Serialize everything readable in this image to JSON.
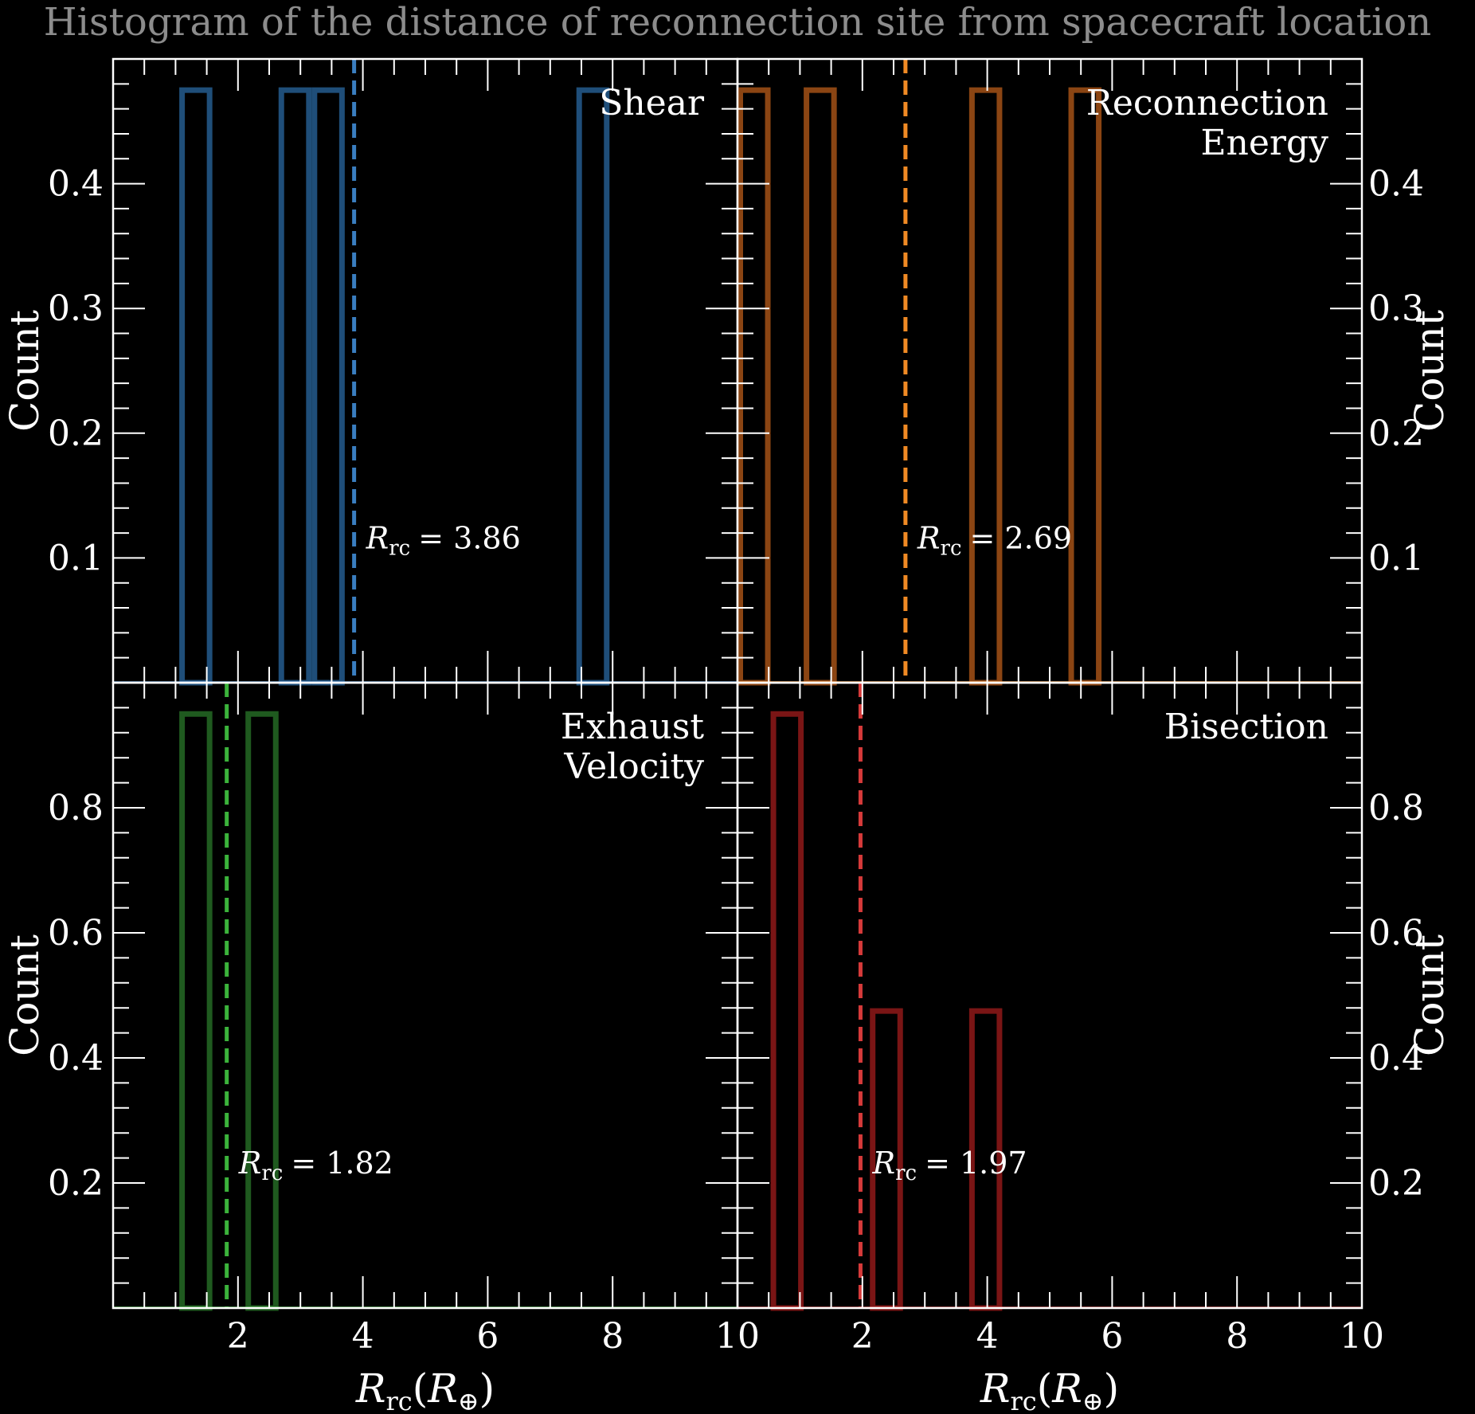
{
  "title": "Histogram of the distance of reconnection site from spacecraft location",
  "chart_data": [
    {
      "type": "bar",
      "label": [
        "Shear"
      ],
      "bin_edges": [
        0.0,
        0.53,
        1.06,
        1.59,
        2.12,
        2.65,
        3.18,
        3.71,
        4.24,
        4.77,
        5.3,
        5.83,
        6.36,
        6.89,
        7.42,
        7.95,
        8.48,
        9.01,
        9.54,
        10.07
      ],
      "values": [
        0,
        0,
        0.475,
        0,
        0,
        0.475,
        0.475,
        0,
        0,
        0,
        0,
        0,
        0,
        0,
        0.475,
        0,
        0,
        0,
        0
      ],
      "median_label": "= 3.86",
      "median_value": 3.86,
      "color": "#1f4e79",
      "line_color": "#3a7ec0",
      "xlim": [
        0,
        10
      ],
      "ylim": [
        0,
        0.5
      ],
      "yticks": [
        0.1,
        0.2,
        0.3,
        0.4
      ],
      "ytick_labels": [
        "0.1",
        "0.2",
        "0.3",
        "0.4"
      ],
      "ylabel": "Count",
      "ylabel_side": "left"
    },
    {
      "type": "bar",
      "label": [
        "Reconnection",
        "Energy"
      ],
      "bin_edges": [
        0.0,
        0.53,
        1.06,
        1.59,
        2.12,
        2.65,
        3.18,
        3.71,
        4.24,
        4.77,
        5.3,
        5.83,
        6.36,
        6.89,
        7.42,
        7.95,
        8.48,
        9.01,
        9.54,
        10.07
      ],
      "values": [
        0.475,
        0,
        0.475,
        0,
        0,
        0,
        0,
        0.475,
        0,
        0,
        0.475,
        0,
        0,
        0,
        0,
        0,
        0,
        0,
        0
      ],
      "median_label": "= 2.69",
      "median_value": 2.69,
      "color": "#8b4513",
      "line_color": "#f08a24",
      "xlim": [
        0,
        10
      ],
      "ylim": [
        0,
        0.5
      ],
      "yticks": [
        0.1,
        0.2,
        0.3,
        0.4
      ],
      "ytick_labels": [
        "0.1",
        "0.2",
        "0.3",
        "0.4"
      ],
      "ylabel": "Count",
      "ylabel_side": "right"
    },
    {
      "type": "bar",
      "label": [
        "Exhaust",
        "Velocity"
      ],
      "bin_edges": [
        0.0,
        0.53,
        1.06,
        1.59,
        2.12,
        2.65,
        3.18,
        3.71,
        4.24,
        4.77,
        5.3,
        5.83,
        6.36,
        6.89,
        7.42,
        7.95,
        8.48,
        9.01,
        9.54,
        10.07
      ],
      "values": [
        0,
        0,
        0.95,
        0,
        0.95,
        0,
        0,
        0,
        0,
        0,
        0,
        0,
        0,
        0,
        0,
        0,
        0,
        0,
        0
      ],
      "median_label": "= 1.82",
      "median_value": 1.82,
      "color": "#1f5a1f",
      "line_color": "#3bb33b",
      "xlim": [
        0,
        10
      ],
      "ylim": [
        0,
        1.0
      ],
      "yticks": [
        0.2,
        0.4,
        0.6,
        0.8
      ],
      "ytick_labels": [
        "0.2",
        "0.4",
        "0.6",
        "0.8"
      ],
      "xticks": [
        2,
        4,
        6,
        8,
        10
      ],
      "xtick_labels": [
        "2",
        "4",
        "6",
        "8",
        "10"
      ],
      "xlabel": "(",
      "ylabel": "Count",
      "ylabel_side": "left"
    },
    {
      "type": "bar",
      "label": [
        "Bisection"
      ],
      "bin_edges": [
        0.0,
        0.53,
        1.06,
        1.59,
        2.12,
        2.65,
        3.18,
        3.71,
        4.24,
        4.77,
        5.3,
        5.83,
        6.36,
        6.89,
        7.42,
        7.95,
        8.48,
        9.01,
        9.54,
        10.07
      ],
      "values": [
        0,
        0.95,
        0,
        0,
        0.475,
        0,
        0,
        0.475,
        0,
        0,
        0,
        0,
        0,
        0,
        0,
        0,
        0,
        0,
        0
      ],
      "median_label": "= 1.97",
      "median_value": 1.97,
      "color": "#7a1515",
      "line_color": "#d63a3a",
      "xlim": [
        0,
        10
      ],
      "ylim": [
        0,
        1.0
      ],
      "yticks": [
        0.2,
        0.4,
        0.6,
        0.8
      ],
      "ytick_labels": [
        "0.2",
        "0.4",
        "0.6",
        "0.8"
      ],
      "xticks": [
        2,
        4,
        6,
        8,
        10
      ],
      "xtick_labels": [
        "2",
        "4",
        "6",
        "8",
        "10"
      ],
      "xlabel": "(",
      "ylabel": "Count",
      "ylabel_side": "right"
    }
  ]
}
